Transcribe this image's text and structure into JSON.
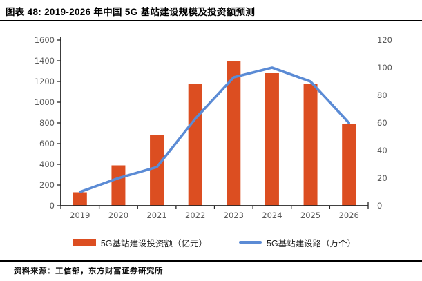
{
  "header": {
    "title": "图表 48: 2019-2026 年中国 5G 基站建设规模及投资额预测"
  },
  "footer": {
    "source": "资料来源：工信部，东方财富证券研究所"
  },
  "chart_data": {
    "type": "bar",
    "subtype": "combo-bar-line-dual-axis",
    "title": "图表 48: 2019-2026 年中国 5G 基站建设规模及投资额预测",
    "categories": [
      "2019",
      "2020",
      "2021",
      "2022",
      "2023",
      "2024",
      "2025",
      "2026"
    ],
    "series": [
      {
        "name": "5G基站建设投资额（亿元）",
        "type": "bar",
        "axis": "left",
        "color": "#DC4E21",
        "values": [
          130,
          390,
          680,
          1180,
          1400,
          1280,
          1180,
          790
        ]
      },
      {
        "name": "5G基站建设路（万个）",
        "type": "line",
        "axis": "right",
        "color": "#5B8BD5",
        "values": [
          10,
          20,
          28,
          63,
          93,
          100,
          90,
          60
        ]
      }
    ],
    "left_axis": {
      "min": 0,
      "max": 1600,
      "step": 200,
      "ticks": [
        "0",
        "200",
        "400",
        "600",
        "800",
        "1000",
        "1200",
        "1400",
        "1600"
      ]
    },
    "right_axis": {
      "min": 0,
      "max": 120,
      "step": 20,
      "ticks": [
        "0",
        "20",
        "40",
        "60",
        "80",
        "100",
        "120"
      ]
    },
    "xlabel": "",
    "ylabel": "",
    "legend_position": "bottom",
    "grid": false,
    "axis_color": "#262626",
    "tick_label_color": "#595959"
  }
}
